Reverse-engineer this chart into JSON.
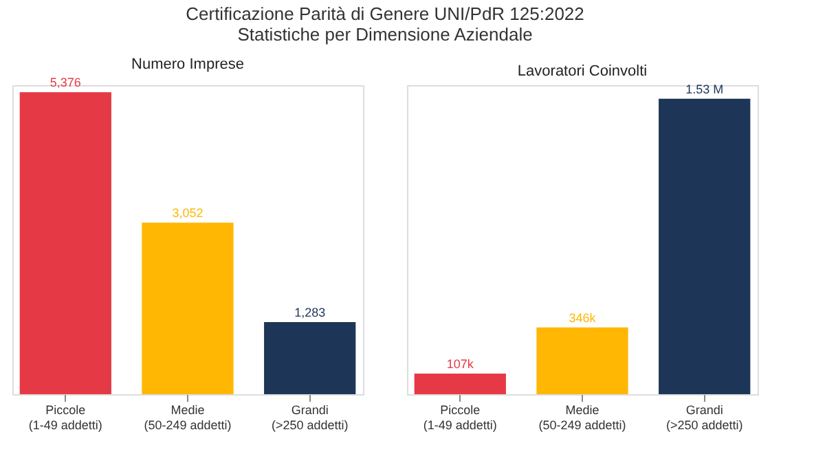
{
  "chart_data": [
    {
      "type": "bar",
      "title": "Numero Imprese",
      "annotations": [
        "Certificazione Parità di Genere UNI/PdR 125:2022",
        "Statistiche per Dimensione Aziendale"
      ],
      "categories": [
        "Piccole\n(1-49 addetti)",
        "Medie\n(50-249 addetti)",
        "Grandi\n(>250 addetti)"
      ],
      "values": [
        5376,
        3052,
        1283
      ],
      "colors": [
        "#e63946",
        "#ffb703",
        "#1d3557"
      ],
      "value_labels": [
        "5,376",
        "3,052",
        "1,283"
      ],
      "grid": false
    },
    {
      "type": "bar",
      "title": "Lavoratori Coinvolti",
      "categories": [
        "Piccole\n(1-49 addetti)",
        "Medie\n(50-249 addetti)",
        "Grandi\n(>250 addetti)"
      ],
      "values": [
        107000,
        346000,
        1530000
      ],
      "colors": [
        "#e63946",
        "#ffb703",
        "#1d3557"
      ],
      "value_labels": [
        "107k",
        "346k",
        "1.53 M"
      ],
      "grid": false
    }
  ]
}
